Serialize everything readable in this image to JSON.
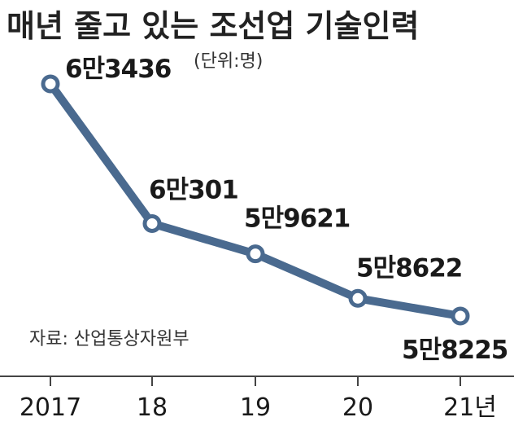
{
  "chart_data": {
    "type": "line",
    "title": "매년 줄고 있는 조선업 기술인력",
    "unit_note": "(단위:명)",
    "source": "자료: 산업통상자원부",
    "categories": [
      "2017",
      "18",
      "19",
      "20",
      "21년"
    ],
    "values": [
      63436,
      60301,
      59621,
      58622,
      58225
    ],
    "data_labels": [
      "6만3436",
      "6만301",
      "5만9621",
      "5만8622",
      "5만8225"
    ],
    "line_color": "#4a6a8f",
    "marker_fill": "#ffffff"
  }
}
